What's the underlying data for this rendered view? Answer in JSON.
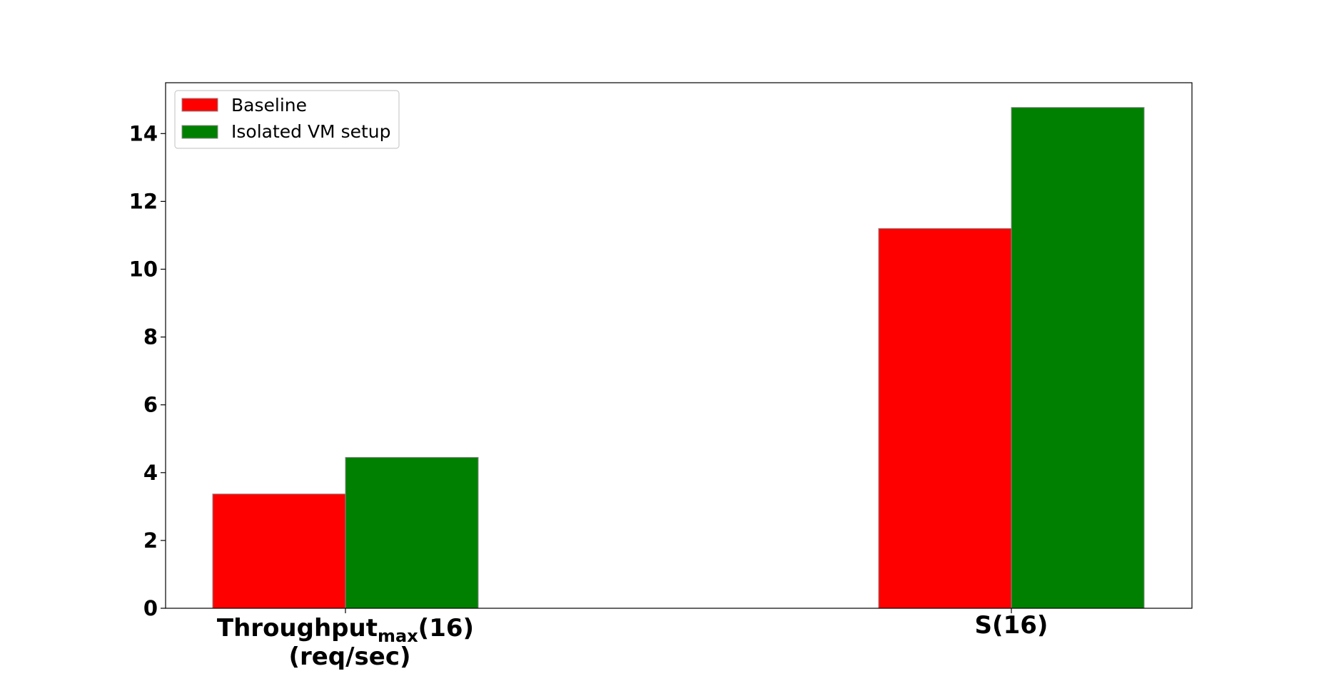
{
  "chart_data": {
    "type": "bar",
    "categories": [
      {
        "line1": "Throughput",
        "sub": "max",
        "line1_suffix": "(16)",
        "line2": "(req/sec)"
      },
      {
        "line1": "S(16)",
        "sub": "",
        "line1_suffix": "",
        "line2": ""
      }
    ],
    "series": [
      {
        "name": "Baseline",
        "color": "#ff0000",
        "values": [
          3.37,
          11.2
        ]
      },
      {
        "name": "Isolated VM setup",
        "color": "#008000",
        "values": [
          4.45,
          14.77
        ]
      }
    ],
    "ylim": [
      0,
      15.5
    ],
    "yticks": [
      0,
      2,
      4,
      6,
      8,
      10,
      12,
      14
    ],
    "title": "",
    "xlabel": "",
    "ylabel": "",
    "legend": "top-left",
    "grid": false
  }
}
